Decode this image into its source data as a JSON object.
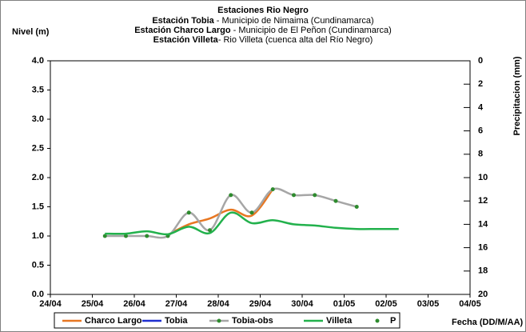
{
  "chart_data": {
    "type": "line",
    "title": "Estaciones Rio Negro",
    "subtitle_lines": [
      {
        "station": "Estación Tobia",
        "desc": " - Municipio de Nimaima (Cundinamarca)"
      },
      {
        "station": "Estación Charco Largo",
        "desc": " - Municipio de El Peñon (Cundinamarca)"
      },
      {
        "station": "Estación Villeta",
        "desc": "-  Rio Villeta (cuenca alta del Río Negro)"
      }
    ],
    "ylabel": "Nivel (m)",
    "y2label": "Precipitacion (mm)",
    "xlabel": "Fecha (DD/M/AA)",
    "xlim": [
      0,
      10
    ],
    "xticks": [
      {
        "value": 0,
        "label": "24/04"
      },
      {
        "value": 1,
        "label": "25/04"
      },
      {
        "value": 2,
        "label": "26/04"
      },
      {
        "value": 3,
        "label": "27/04"
      },
      {
        "value": 4,
        "label": "28/04"
      },
      {
        "value": 5,
        "label": "29/04"
      },
      {
        "value": 6,
        "label": "30/04"
      },
      {
        "value": 7,
        "label": "01/05"
      },
      {
        "value": 8,
        "label": "02/05"
      },
      {
        "value": 9,
        "label": "03/05"
      },
      {
        "value": 10,
        "label": "04/05"
      }
    ],
    "ylim": [
      0,
      4
    ],
    "yticks": [
      {
        "value": 0,
        "label": "0.0"
      },
      {
        "value": 0.5,
        "label": "0.5"
      },
      {
        "value": 1,
        "label": "1.0"
      },
      {
        "value": 1.5,
        "label": "1.5"
      },
      {
        "value": 2,
        "label": "2.0"
      },
      {
        "value": 2.5,
        "label": "2.5"
      },
      {
        "value": 3,
        "label": "3.0"
      },
      {
        "value": 3.5,
        "label": "3.5"
      },
      {
        "value": 4,
        "label": "4.0"
      }
    ],
    "y2lim": [
      20,
      0
    ],
    "y2ticks": [
      0,
      2,
      4,
      6,
      8,
      10,
      12,
      14,
      16,
      18,
      20
    ],
    "series": [
      {
        "name": "Charco Largo",
        "color": "#e87722",
        "markers": false,
        "x": [
          2.8,
          3.3,
          3.8,
          4.3,
          4.8,
          5.3
        ],
        "values": [
          1.02,
          1.2,
          1.3,
          1.45,
          1.35,
          1.8
        ]
      },
      {
        "name": "Tobia",
        "color": "#1f2fd0",
        "markers": false,
        "x": [],
        "values": []
      },
      {
        "name": "Tobia-obs",
        "color": "#a6a6a6",
        "markers": true,
        "marker_color": "#2e8b2e",
        "x": [
          1.3,
          1.8,
          2.3,
          2.8,
          3.3,
          3.8,
          4.3,
          4.8,
          5.3,
          5.8,
          6.3,
          6.8,
          7.3
        ],
        "values": [
          1.0,
          1.0,
          1.0,
          1.0,
          1.4,
          1.1,
          1.7,
          1.4,
          1.8,
          1.7,
          1.7,
          1.6,
          1.5
        ]
      },
      {
        "name": "Villeta",
        "color": "#22b14c",
        "markers": false,
        "x": [
          1.3,
          1.8,
          2.3,
          2.8,
          3.3,
          3.8,
          4.3,
          4.8,
          5.3,
          5.8,
          6.3,
          6.8,
          7.3,
          7.8,
          8.3
        ],
        "values": [
          1.04,
          1.04,
          1.08,
          1.03,
          1.16,
          1.05,
          1.4,
          1.22,
          1.27,
          1.2,
          1.18,
          1.14,
          1.12,
          1.12,
          1.12
        ]
      },
      {
        "name": "P",
        "color": "#2e8b2e",
        "markers": true,
        "axis": "y2",
        "dots_only": true,
        "x": [],
        "values": []
      }
    ]
  }
}
